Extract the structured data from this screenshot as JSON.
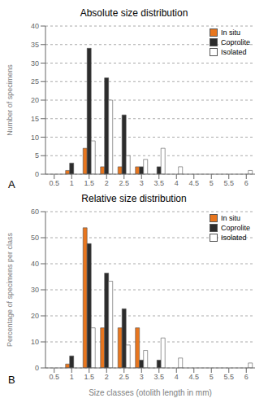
{
  "chart_data": [
    {
      "type": "bar",
      "title": "Absolute size distribution",
      "ylabel": "Number of specimens",
      "categories": [
        "0.5",
        "1",
        "1.5",
        "2",
        "2.5",
        "3",
        "3.5",
        "4",
        "4.5",
        "5",
        "5.5",
        "6"
      ],
      "series": [
        {
          "name": "In situ",
          "color": "#E8761E",
          "values": [
            0,
            1,
            7,
            2,
            2,
            2,
            0,
            0,
            0,
            0,
            0,
            0
          ]
        },
        {
          "name": "Coprolite",
          "color": "#2C2C2C",
          "values": [
            0,
            3,
            34,
            26,
            16,
            2,
            2,
            0,
            0,
            0,
            0,
            0
          ]
        },
        {
          "name": "Isolated",
          "color": "#FFFFFF",
          "values": [
            0,
            0,
            9,
            20,
            5,
            4,
            7,
            2,
            0,
            0,
            0,
            1
          ]
        }
      ],
      "ylim": [
        0,
        40
      ],
      "yticks": [
        0,
        5,
        10,
        15,
        20,
        25,
        30,
        35,
        40
      ],
      "grid": true,
      "legend": "upper right",
      "annotations": [
        "A"
      ]
    },
    {
      "type": "bar",
      "title": "Relative size distribution",
      "xlabel": "Size classes (otolith length in mm)",
      "ylabel": "Percentage of specimens per class",
      "categories": [
        "0.5",
        "1",
        "1.5",
        "2",
        "2.5",
        "3",
        "3.5",
        "4",
        "4.5",
        "5",
        "5.5",
        "6"
      ],
      "series": [
        {
          "name": "In situ",
          "color": "#E8761E",
          "values": [
            0,
            1.5,
            53.8,
            15.4,
            15.4,
            15.4,
            0,
            0,
            0,
            0,
            0,
            0
          ]
        },
        {
          "name": "Coprolite",
          "color": "#2C2C2C",
          "values": [
            0,
            4.6,
            47.7,
            36.4,
            22.7,
            3.0,
            3.0,
            0,
            0,
            0,
            0,
            0
          ]
        },
        {
          "name": "Isolated",
          "color": "#FFFFFF",
          "values": [
            0,
            0,
            15.4,
            33.3,
            8.8,
            6.7,
            11.5,
            3.8,
            0,
            0,
            0,
            1.9
          ]
        }
      ],
      "ylim": [
        0,
        60
      ],
      "yticks": [
        0,
        10,
        20,
        30,
        40,
        50,
        60
      ],
      "grid": true,
      "legend": "upper right",
      "annotations": [
        "B"
      ]
    }
  ]
}
